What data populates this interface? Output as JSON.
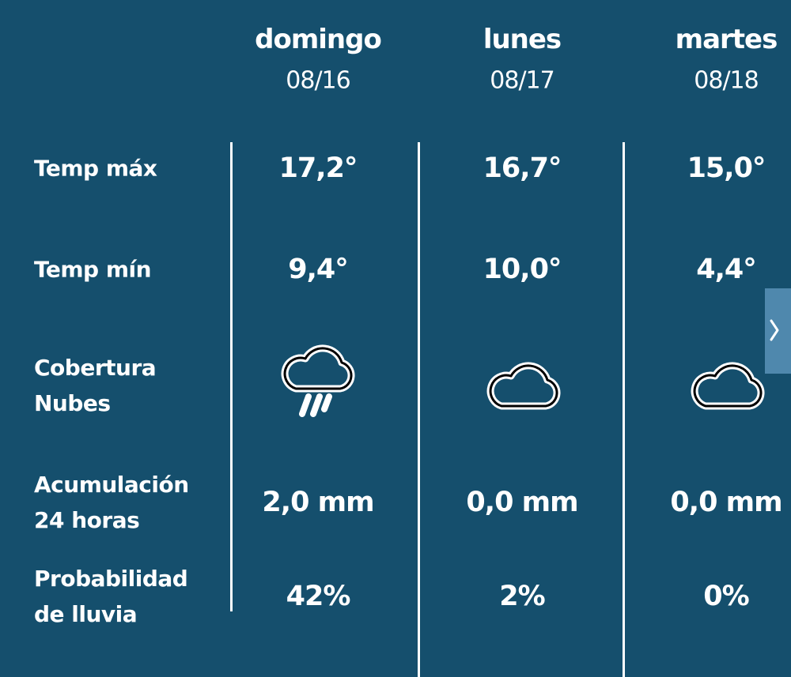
{
  "columns": [
    {
      "day": "domingo",
      "date": "08/16"
    },
    {
      "day": "lunes",
      "date": "08/17"
    },
    {
      "day": "martes",
      "date": "08/18"
    }
  ],
  "rows": [
    {
      "label": "Temp máx",
      "values": [
        "17,2°",
        "16,7°",
        "15,0°"
      ]
    },
    {
      "label": "Temp mín",
      "values": [
        "9,4°",
        "10,0°",
        "4,4°"
      ]
    },
    {
      "label": "Cobertura Nubes",
      "values": []
    },
    {
      "label": "Acumulación 24 horas",
      "values": [
        "2,0 mm",
        "0,0 mm",
        "0,0 mm"
      ]
    },
    {
      "label": "Probabilidad de lluvia",
      "values": [
        "42%",
        "2%",
        "0%"
      ]
    }
  ]
}
